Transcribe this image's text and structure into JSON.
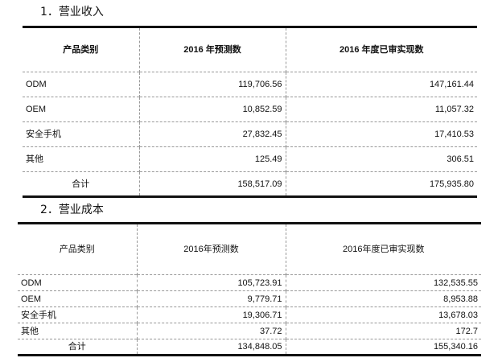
{
  "section1": {
    "title": "1．营业收入",
    "headers": [
      "产品类别",
      "2016 年预测数",
      "2016 年度已审实现数"
    ],
    "rows": [
      [
        "ODM",
        "119,706.56",
        "147,161.44"
      ],
      [
        "OEM",
        "10,852.59",
        "11,057.32"
      ],
      [
        "安全手机",
        "27,832.45",
        "17,410.53"
      ],
      [
        "其他",
        "125.49",
        "306.51"
      ],
      [
        "合计",
        "158,517.09",
        "175,935.80"
      ]
    ]
  },
  "section2": {
    "title": "2．营业成本",
    "headers": [
      "产品类别",
      "2016年预测数",
      "2016年度已审实现数"
    ],
    "rows": [
      [
        "ODM",
        "105,723.91",
        "132,535.55"
      ],
      [
        "OEM",
        "9,779.71",
        "8,953.88"
      ],
      [
        "安全手机",
        "19,306.71",
        "13,678.03"
      ],
      [
        "其他",
        "37.72",
        "172.7"
      ],
      [
        "合计",
        "134,848.05",
        "155,340.16"
      ]
    ]
  }
}
